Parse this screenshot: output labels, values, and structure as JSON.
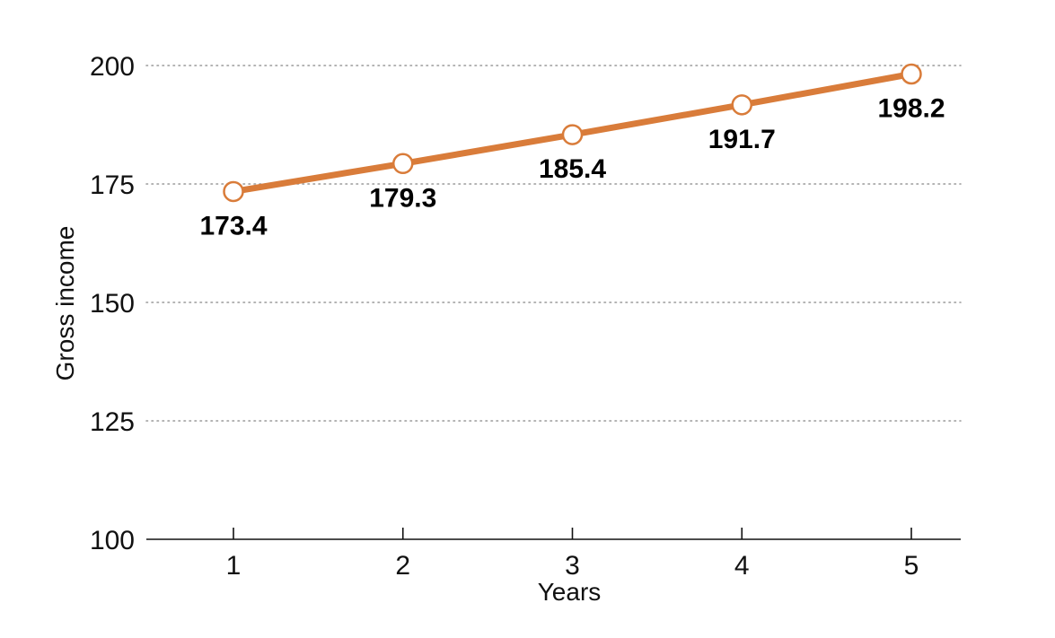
{
  "chart_data": {
    "type": "line",
    "title": "",
    "xlabel": "Years",
    "ylabel": "Gross income",
    "x": [
      1,
      2,
      3,
      4,
      5
    ],
    "x_tick_labels": [
      "1",
      "2",
      "3",
      "4",
      "5"
    ],
    "series": [
      {
        "values": [
          173.4,
          179.3,
          185.4,
          191.7,
          198.2
        ],
        "color": "#d97c3a"
      }
    ],
    "data_labels": [
      "173.4",
      "179.3",
      "185.4",
      "191.7",
      "198.2"
    ],
    "ylim": [
      100,
      200
    ],
    "y_ticks": [
      100,
      125,
      150,
      175,
      200
    ],
    "y_tick_labels": [
      "100",
      "125",
      "150",
      "175",
      "200"
    ],
    "grid": "horizontal dotted",
    "legend": "none",
    "marker": "open circle"
  }
}
